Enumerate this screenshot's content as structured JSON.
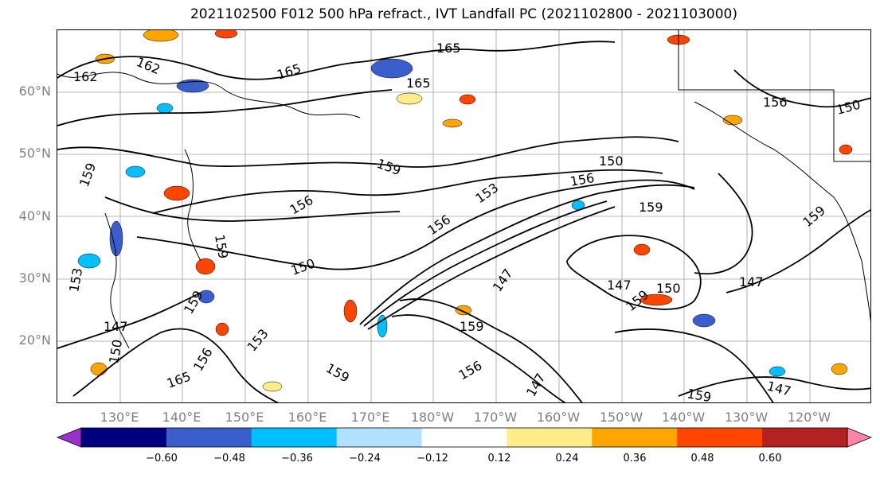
{
  "title": "2021102500 F012 500 hPa refract., IVT Landfall PC (2021102800 - 2021103000)",
  "lat_labels": [
    "60°N",
    "50°N",
    "40°N",
    "30°N",
    "20°N"
  ],
  "lon_labels": [
    "130°E",
    "140°E",
    "150°E",
    "160°E",
    "170°E",
    "180°W",
    "170°W",
    "160°W",
    "150°W",
    "140°W",
    "130°W",
    "120°W"
  ],
  "colorbar": {
    "tick_labels": [
      "−0.60",
      "−0.48",
      "−0.36",
      "−0.24",
      "−0.12",
      "0.12",
      "0.24",
      "0.36",
      "0.48",
      "0.60"
    ],
    "colors": [
      "#9932cc",
      "#000080",
      "#3a5fcd",
      "#00bfff",
      "#b0e2ff",
      "#ffffff",
      "#ffec8b",
      "#ffa500",
      "#ff4500",
      "#b22222",
      "#ff85a8"
    ],
    "extend": "both"
  },
  "contour_labels": [
    "162",
    "162",
    "165",
    "165",
    "165",
    "156",
    "150",
    "159",
    "150",
    "159",
    "156",
    "156",
    "159",
    "159",
    "156",
    "153",
    "153",
    "150",
    "147",
    "147",
    "150",
    "147",
    "159",
    "156",
    "159",
    "159",
    "147",
    "159",
    "147",
    "150",
    "165",
    "159",
    "156",
    "153",
    "159",
    "147"
  ],
  "colors": {
    "contour": "#000000",
    "grid": "#a0a0a0",
    "axis_label": "#808080"
  }
}
